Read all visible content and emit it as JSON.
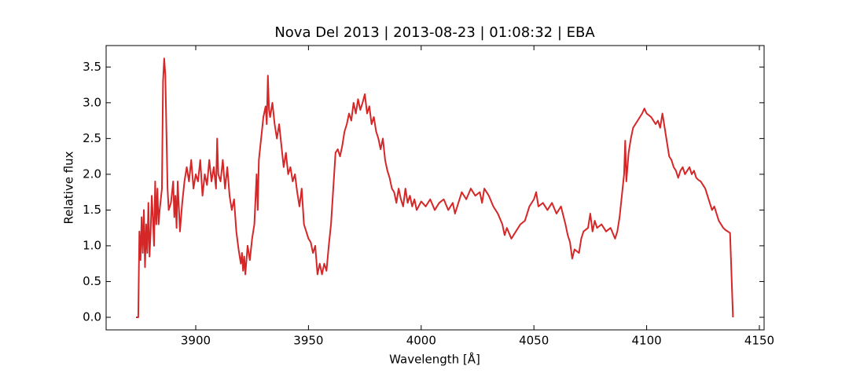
{
  "chart_data": {
    "type": "line",
    "title": "Nova Del 2013 | 2013-08-23 | 01:08:32 | EBA",
    "xlabel": "Wavelength [Å]",
    "ylabel": "Relative flux",
    "color": "#d62728",
    "xlim": [
      3860.25,
      4152.1
    ],
    "ylim": [
      -0.176,
      3.8
    ],
    "xticks": [
      3900,
      3950,
      4000,
      4050,
      4100,
      4150
    ],
    "yticks": [
      {
        "value": 0,
        "label": "0.0"
      },
      0.5,
      {
        "value": 1,
        "label": "1.0"
      },
      1.5,
      {
        "value": 2,
        "label": "2.0"
      },
      2.5,
      {
        "value": 3,
        "label": "3.0"
      },
      3.5
    ],
    "x": [
      3873.5,
      3874.5,
      3875,
      3875.5,
      3876,
      3876.5,
      3877,
      3877.5,
      3878,
      3878.5,
      3879,
      3879.5,
      3880,
      3880.5,
      3881,
      3881.5,
      3882,
      3882.5,
      3883,
      3883.5,
      3884,
      3885,
      3885.5,
      3886,
      3886.5,
      3887,
      3887.5,
      3888,
      3889,
      3890,
      3890.5,
      3891,
      3891.5,
      3892,
      3893,
      3894,
      3895,
      3896,
      3897,
      3898,
      3899,
      3900,
      3901,
      3902,
      3903,
      3904,
      3905,
      3906,
      3907,
      3908,
      3909,
      3909.5,
      3910,
      3911,
      3912,
      3913,
      3914,
      3915,
      3916,
      3917,
      3918,
      3919,
      3920,
      3920.5,
      3921,
      3921.5,
      3922,
      3923,
      3924,
      3925,
      3926,
      3927,
      3927.5,
      3928,
      3929,
      3930,
      3931,
      3931.5,
      3932,
      3932.5,
      3933,
      3934,
      3935,
      3936,
      3937,
      3938,
      3939,
      3940,
      3941,
      3942,
      3943,
      3944,
      3945,
      3946,
      3947,
      3948,
      3949,
      3950,
      3951,
      3952,
      3953,
      3954,
      3955,
      3956,
      3957,
      3958,
      3959,
      3960,
      3961,
      3962,
      3963,
      3964,
      3965,
      3966,
      3967,
      3968,
      3969,
      3970,
      3971,
      3972,
      3973,
      3974,
      3975,
      3976,
      3977,
      3978,
      3979,
      3980,
      3981,
      3982,
      3983,
      3984,
      3985,
      3986,
      3987,
      3988,
      3989,
      3990,
      3991,
      3992,
      3993,
      3994,
      3995,
      3996,
      3997,
      3998,
      4000,
      4002,
      4004,
      4006,
      4008,
      4010,
      4012,
      4014,
      4015,
      4016,
      4018,
      4020,
      4022,
      4024,
      4026,
      4027,
      4028,
      4030,
      4032,
      4034,
      4036,
      4037,
      4038,
      4040,
      4042,
      4044,
      4046,
      4048,
      4050,
      4051,
      4052,
      4054,
      4056,
      4058,
      4060,
      4062,
      4064,
      4065,
      4066,
      4067,
      4068,
      4070,
      4071,
      4072,
      4074,
      4075,
      4076,
      4077,
      4078,
      4080,
      4082,
      4084,
      4086,
      4087,
      4088,
      4089,
      4090,
      4090.5,
      4091,
      4092,
      4093,
      4094,
      4096,
      4098,
      4099,
      4100,
      4102,
      4104,
      4105,
      4106,
      4107,
      4108,
      4109,
      4110,
      4111,
      4112,
      4113,
      4114,
      4115,
      4116,
      4117,
      4118,
      4119,
      4120,
      4121,
      4122,
      4123,
      4124,
      4125,
      4126,
      4127,
      4128,
      4129,
      4130,
      4131,
      4132,
      4133,
      4134,
      4135,
      4137,
      4138.3
    ],
    "values": [
      0,
      0,
      1.2,
      0.8,
      1.4,
      0.9,
      1.5,
      0.7,
      1.3,
      0.9,
      1.6,
      0.85,
      1.2,
      1.7,
      1.4,
      1.0,
      1.9,
      1.3,
      1.8,
      1.3,
      1.5,
      1.8,
      3.3,
      3.62,
      3.4,
      2.6,
      1.8,
      1.5,
      1.6,
      1.9,
      1.4,
      1.7,
      1.25,
      1.9,
      1.2,
      1.6,
      1.9,
      2.1,
      1.9,
      2.2,
      1.8,
      2.0,
      1.9,
      2.2,
      1.7,
      2.0,
      1.85,
      2.2,
      1.9,
      2.1,
      1.8,
      2.5,
      2.0,
      1.9,
      2.2,
      1.8,
      2.1,
      1.7,
      1.5,
      1.65,
      1.2,
      0.95,
      0.75,
      0.9,
      0.65,
      0.85,
      0.6,
      1.0,
      0.8,
      1.1,
      1.3,
      2.0,
      1.5,
      2.2,
      2.5,
      2.8,
      2.95,
      2.7,
      3.38,
      2.9,
      2.8,
      3.0,
      2.7,
      2.5,
      2.7,
      2.4,
      2.1,
      2.3,
      2.0,
      2.1,
      1.9,
      2.0,
      1.75,
      1.55,
      1.8,
      1.3,
      1.2,
      1.1,
      1.05,
      0.9,
      1.0,
      0.6,
      0.75,
      0.6,
      0.75,
      0.65,
      1.0,
      1.3,
      1.8,
      2.3,
      2.35,
      2.25,
      2.4,
      2.6,
      2.7,
      2.85,
      2.75,
      3.0,
      2.85,
      3.05,
      2.9,
      3.0,
      3.12,
      2.85,
      2.95,
      2.7,
      2.8,
      2.6,
      2.5,
      2.35,
      2.5,
      2.2,
      2.05,
      1.95,
      1.8,
      1.75,
      1.6,
      1.8,
      1.65,
      1.55,
      1.8,
      1.6,
      1.7,
      1.55,
      1.65,
      1.5,
      1.62,
      1.55,
      1.65,
      1.5,
      1.6,
      1.65,
      1.5,
      1.6,
      1.45,
      1.55,
      1.75,
      1.65,
      1.8,
      1.7,
      1.75,
      1.6,
      1.8,
      1.7,
      1.55,
      1.45,
      1.3,
      1.15,
      1.25,
      1.1,
      1.2,
      1.3,
      1.35,
      1.55,
      1.65,
      1.75,
      1.55,
      1.6,
      1.5,
      1.6,
      1.45,
      1.55,
      1.3,
      1.15,
      1.05,
      0.82,
      0.95,
      0.9,
      1.1,
      1.2,
      1.25,
      1.45,
      1.2,
      1.35,
      1.25,
      1.3,
      1.2,
      1.25,
      1.1,
      1.2,
      1.4,
      1.7,
      2.0,
      2.47,
      1.9,
      2.3,
      2.5,
      2.65,
      2.75,
      2.85,
      2.92,
      2.85,
      2.8,
      2.7,
      2.75,
      2.65,
      2.85,
      2.65,
      2.45,
      2.25,
      2.2,
      2.1,
      2.05,
      1.95,
      2.05,
      2.1,
      2.0,
      2.05,
      2.1,
      2.0,
      2.05,
      1.95,
      1.92,
      1.9,
      1.85,
      1.8,
      1.7,
      1.6,
      1.5,
      1.55,
      1.45,
      1.35,
      1.3,
      1.25,
      1.22,
      1.18,
      0
    ]
  }
}
